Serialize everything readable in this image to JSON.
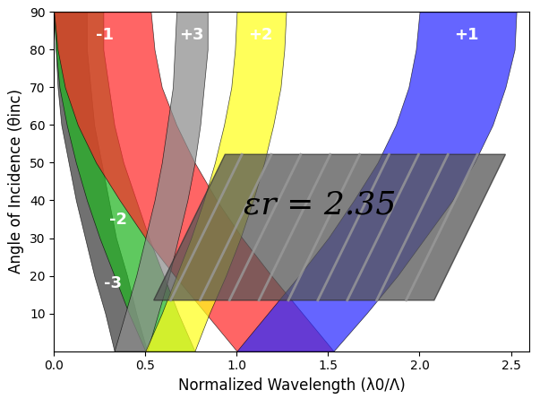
{
  "chart_data": {
    "type": "band",
    "xlabel": "Normalized Wavelength (λ0/Λ)",
    "ylabel": "Angle of Incidence (θinc)",
    "annotation": "εr = 2.35",
    "y": [
      0,
      10,
      20,
      30,
      40,
      50,
      60,
      70,
      80,
      90
    ],
    "xlim": [
      0,
      2.6
    ],
    "ylim": [
      0,
      90
    ],
    "xticks": [
      0.0,
      0.5,
      1.0,
      1.5,
      2.0,
      2.5
    ],
    "yticks": [
      10,
      20,
      30,
      40,
      50,
      60,
      70,
      80,
      90
    ],
    "grid": false,
    "series": [
      {
        "name": "-3",
        "color": "#3a3a3a",
        "values": [
          [
            0.33,
            0.51
          ],
          [
            0.28,
            0.45
          ],
          [
            0.22,
            0.4
          ],
          [
            0.17,
            0.34
          ],
          [
            0.12,
            0.3
          ],
          [
            0.08,
            0.26
          ],
          [
            0.04,
            0.22
          ],
          [
            0.02,
            0.2
          ],
          [
            0.01,
            0.18
          ],
          [
            0.0,
            0.18
          ]
        ]
      },
      {
        "name": "-2",
        "color": "#22b522",
        "values": [
          [
            0.5,
            0.77
          ],
          [
            0.41,
            0.68
          ],
          [
            0.33,
            0.6
          ],
          [
            0.25,
            0.52
          ],
          [
            0.18,
            0.45
          ],
          [
            0.12,
            0.38
          ],
          [
            0.07,
            0.33
          ],
          [
            0.03,
            0.3
          ],
          [
            0.01,
            0.27
          ],
          [
            0.0,
            0.27
          ]
        ]
      },
      {
        "name": "-1",
        "color": "#ff2a2a",
        "values": [
          [
            1.0,
            1.53
          ],
          [
            0.83,
            1.36
          ],
          [
            0.66,
            1.19
          ],
          [
            0.5,
            1.03
          ],
          [
            0.36,
            0.89
          ],
          [
            0.23,
            0.77
          ],
          [
            0.13,
            0.67
          ],
          [
            0.06,
            0.59
          ],
          [
            0.02,
            0.55
          ],
          [
            0.0,
            0.53
          ]
        ]
      },
      {
        "name": "+3",
        "color": "#8c8c8c",
        "values": [
          [
            0.33,
            0.51
          ],
          [
            0.39,
            0.57
          ],
          [
            0.45,
            0.63
          ],
          [
            0.5,
            0.68
          ],
          [
            0.55,
            0.73
          ],
          [
            0.59,
            0.77
          ],
          [
            0.62,
            0.8
          ],
          [
            0.65,
            0.82
          ],
          [
            0.66,
            0.84
          ],
          [
            0.67,
            0.84
          ]
        ]
      },
      {
        "name": "+2",
        "color": "#ffff1a",
        "values": [
          [
            0.5,
            0.77
          ],
          [
            0.59,
            0.85
          ],
          [
            0.67,
            0.94
          ],
          [
            0.75,
            1.02
          ],
          [
            0.82,
            1.09
          ],
          [
            0.88,
            1.15
          ],
          [
            0.93,
            1.2
          ],
          [
            0.97,
            1.24
          ],
          [
            0.99,
            1.26
          ],
          [
            1.0,
            1.27
          ]
        ]
      },
      {
        "name": "+1",
        "color": "#2a2aff",
        "values": [
          [
            1.0,
            1.53
          ],
          [
            1.17,
            1.71
          ],
          [
            1.34,
            1.88
          ],
          [
            1.5,
            2.03
          ],
          [
            1.64,
            2.18
          ],
          [
            1.77,
            2.3
          ],
          [
            1.87,
            2.4
          ],
          [
            1.94,
            2.47
          ],
          [
            1.98,
            2.52
          ],
          [
            2.0,
            2.53
          ]
        ]
      }
    ]
  }
}
